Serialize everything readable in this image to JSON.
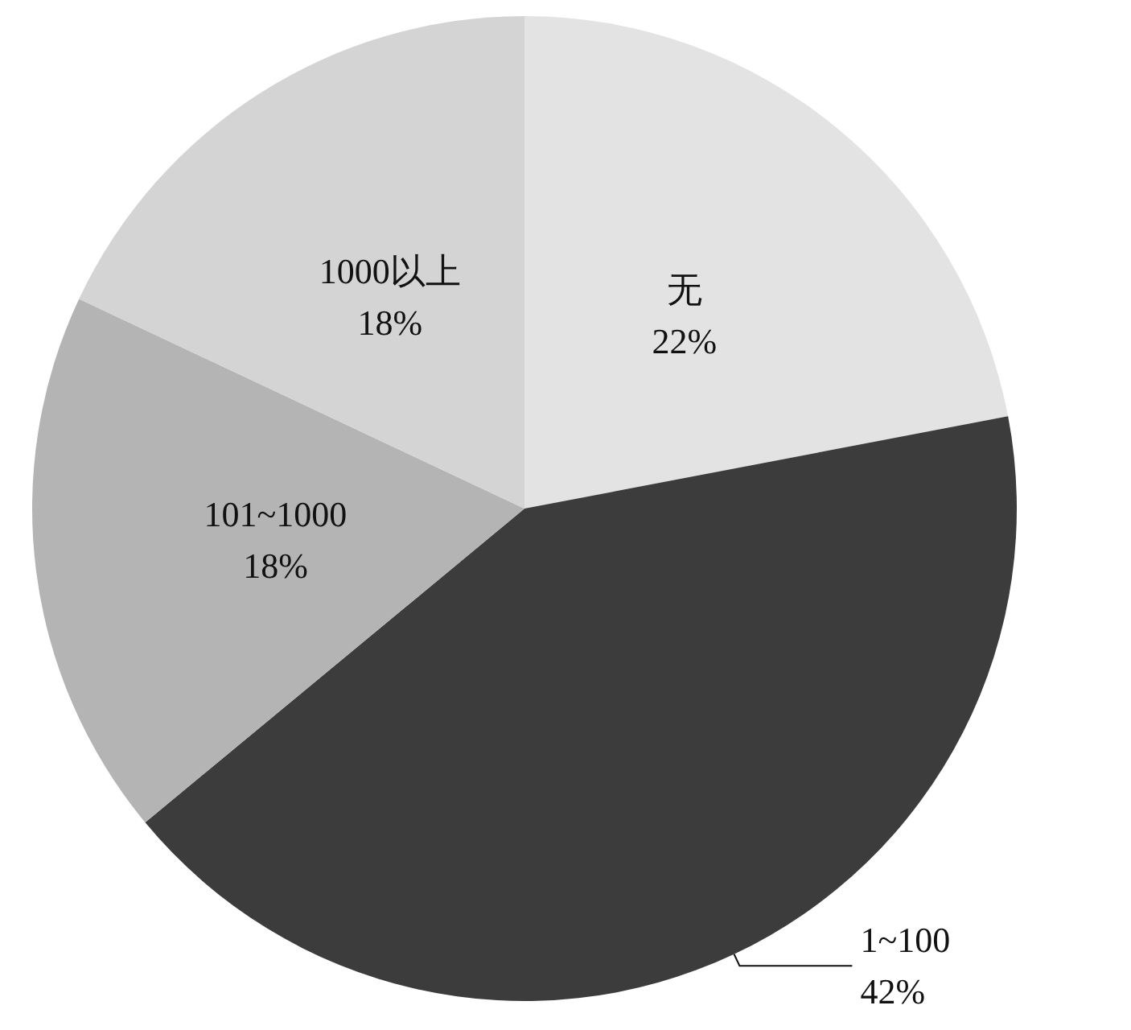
{
  "chart_data": {
    "type": "pie",
    "categories": [
      "无",
      "1~100",
      "101~1000",
      "1000以上"
    ],
    "values": [
      22,
      42,
      18,
      18
    ],
    "colors": [
      "#e3e3e3",
      "#3c3c3c",
      "#b4b4b4",
      "#d4d4d4"
    ],
    "value_labels": [
      "22%",
      "42%",
      "18%",
      "18%"
    ],
    "legend": false
  }
}
